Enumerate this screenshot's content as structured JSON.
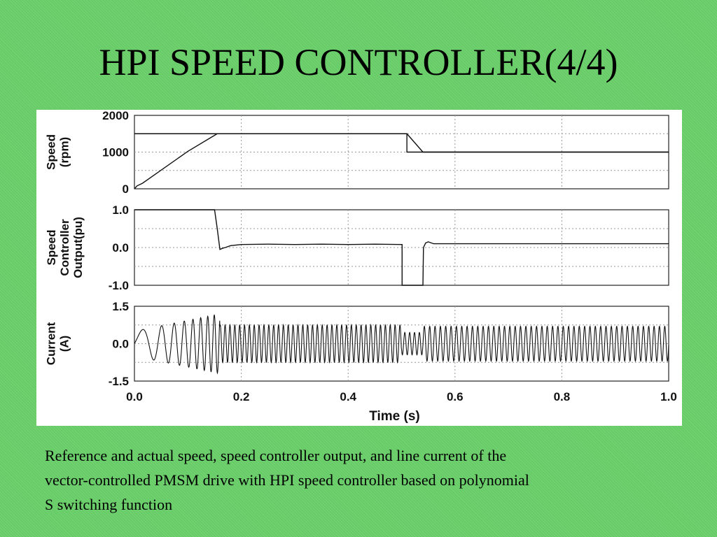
{
  "slide": {
    "title": "HPI SPEED CONTROLLER(4/4)",
    "caption_lines": [
      "Reference and actual speed, speed controller output, and line current of the",
      "vector-controlled PMSM drive with HPI speed controller based on polynomial",
      "S switching function"
    ]
  },
  "colors": {
    "background": "#66cc66",
    "trace": "#111111",
    "grid": "#999999",
    "panel": "#ffffff"
  },
  "chart_data": [
    {
      "type": "line",
      "ylabel": [
        "Speed",
        "(rpm)"
      ],
      "ylim": [
        0,
        2000
      ],
      "xlim": [
        0,
        1.0
      ],
      "yticks": [
        "2000",
        "1000",
        "0"
      ],
      "ytick_values": [
        2000,
        1000,
        0
      ],
      "grid": true,
      "series": [
        {
          "x": [
            0,
            0.51,
            0.51,
            1.0
          ],
          "y": [
            1500,
            1500,
            1000,
            1000
          ]
        },
        {
          "x": [
            0,
            0.005,
            0.015,
            0.1,
            0.155,
            0.51,
            0.54,
            1.0
          ],
          "y": [
            0,
            80,
            150,
            1020,
            1500,
            1500,
            1000,
            1000
          ]
        }
      ]
    },
    {
      "type": "line",
      "ylabel": [
        "Speed",
        "Controller",
        "Output(pu)"
      ],
      "ylim": [
        -1.0,
        1.0
      ],
      "xlim": [
        0,
        1.0
      ],
      "yticks": [
        "1.0",
        "0.0",
        "-1.0"
      ],
      "ytick_values": [
        1.0,
        0.0,
        -1.0
      ],
      "grid": true,
      "series": [
        {
          "x": [
            0,
            0.15,
            0.155,
            0.16,
            0.165,
            0.17,
            0.18,
            0.2,
            0.25,
            0.3,
            0.35,
            0.4,
            0.45,
            0.5,
            0.501,
            0.501,
            0.54,
            0.541,
            0.545,
            0.55,
            0.56,
            0.6,
            1.0
          ],
          "y": [
            1.0,
            1.0,
            0.5,
            -0.05,
            -0.02,
            0.0,
            0.05,
            0.08,
            0.09,
            0.08,
            0.09,
            0.08,
            0.09,
            0.08,
            0.08,
            -1.0,
            -1.0,
            0.0,
            0.12,
            0.15,
            0.1,
            0.1,
            0.1
          ]
        }
      ]
    },
    {
      "type": "line",
      "ylabel": [
        "Current",
        "(A)"
      ],
      "ylim": [
        -1.5,
        1.5
      ],
      "xlim": [
        0,
        1.0
      ],
      "yticks": [
        "1.5",
        "0.0",
        "-1.5"
      ],
      "ytick_values": [
        1.5,
        0.0,
        -1.5
      ],
      "grid": true,
      "series": [
        {
          "sampling": "described",
          "segments": [
            {
              "t0": 0.0,
              "t1": 0.16,
              "f0": 12,
              "f1": 90,
              "a0": 0.5,
              "a1": 1.2
            },
            {
              "t0": 0.16,
              "t1": 0.5,
              "f": 110,
              "a": 0.75
            },
            {
              "t0": 0.5,
              "t1": 0.54,
              "f": 110,
              "a": 0.45
            },
            {
              "t0": 0.54,
              "t1": 1.0,
              "f": 100,
              "a": 0.7
            }
          ]
        }
      ]
    }
  ],
  "x_axis": {
    "label": "Time (s)",
    "ticks": [
      "0.0",
      "0.2",
      "0.4",
      "0.6",
      "0.8",
      "1.0"
    ],
    "tick_values": [
      0.0,
      0.2,
      0.4,
      0.6,
      0.8,
      1.0
    ]
  }
}
